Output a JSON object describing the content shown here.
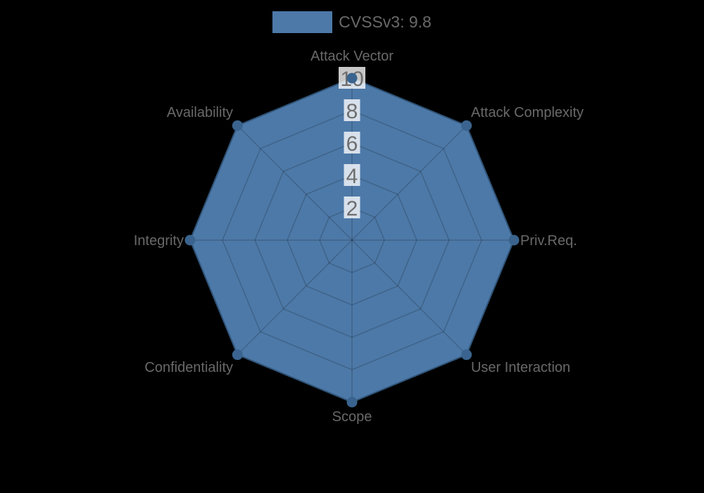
{
  "chart_data": {
    "type": "radar",
    "title": "",
    "categories": [
      "Attack Vector",
      "Attack Complexity",
      "Priv.Req.",
      "User Interaction",
      "Scope",
      "Confidentiality",
      "Integrity",
      "Availability"
    ],
    "series": [
      {
        "name": "CVSSv3: 9.8",
        "values": [
          10,
          10,
          10,
          10,
          10,
          10,
          10,
          10
        ]
      }
    ],
    "ticks": [
      2,
      4,
      6,
      8,
      10
    ],
    "rmin": 0,
    "rmax": 10,
    "grid": true,
    "legend_position": "top",
    "colors": {
      "fill": "#4d79a8",
      "stroke": "#3a648f",
      "point": "#3a648f",
      "grid_line": "rgba(0,0,0,0.18)",
      "axis_label": "#696969",
      "tick_label": "#6e6e6e",
      "tick_backdrop": "rgba(255,255,255,0.78)",
      "background": "#000000"
    }
  }
}
